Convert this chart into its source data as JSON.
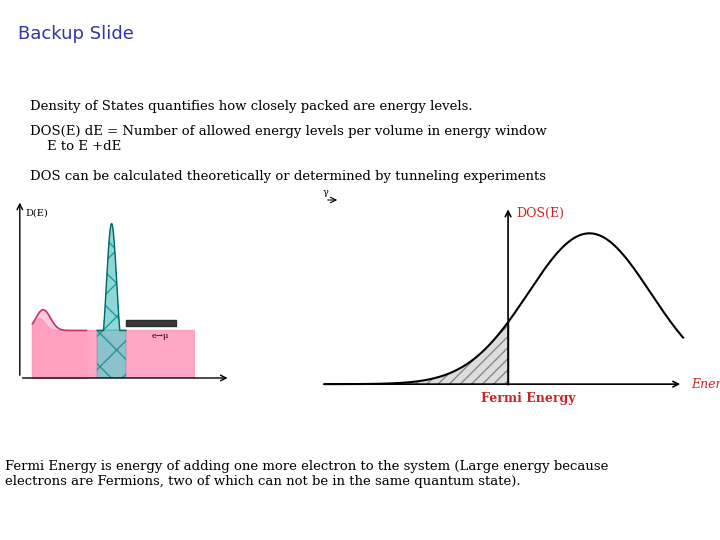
{
  "title": "Backup Slide",
  "title_color": "#3333aa",
  "title_fontsize": 13,
  "text1": "Density of States quantifies how closely packed are energy levels.",
  "text2": "DOS(E) dE = Number of allowed energy levels per volume in energy window\n    E to E +dE",
  "text3": "DOS can be calculated theoretically or determined by tunneling experiments",
  "text4": "Fermi Energy is energy of adding one more electron to the system (Large energy because\nelectrons are Fermions, two of which can not be in the same quantum state).",
  "dos_label": "DOS(E)",
  "energy_label": "Energy",
  "fermi_label": "Fermi Energy",
  "left_ylabel": "D(E)",
  "left_small_label": "e→μ",
  "dos_label_color": "#cc2222",
  "energy_label_color": "#cc2222",
  "fermi_label_color": "#cc2222",
  "text_color": "#000000",
  "pink_color": "#ff99bb",
  "teal_color": "#66cccc",
  "curve_color": "#000000",
  "bg_color": "#ffffff"
}
